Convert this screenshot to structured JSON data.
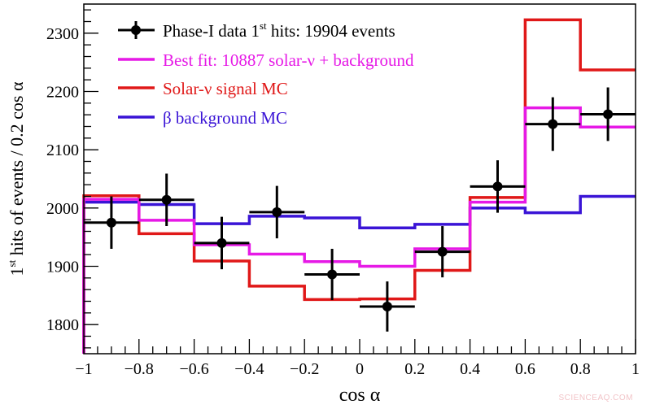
{
  "chart_data": {
    "type": "step-histogram",
    "xlabel": "cos α",
    "ylabel_parts": [
      "1",
      "st",
      " hits of events / 0.2 cos α"
    ],
    "xlim": [
      -1,
      1
    ],
    "ylim": [
      1750,
      2350
    ],
    "xticks": [
      "−1",
      "−0.8",
      "−0.6",
      "−0.4",
      "−0.2",
      "0",
      "0.2",
      "0.4",
      "0.6",
      "0.8",
      "1"
    ],
    "xtick_values": [
      -1,
      -0.8,
      -0.6,
      -0.4,
      -0.2,
      0,
      0.2,
      0.4,
      0.6,
      0.8,
      1
    ],
    "yticks": [
      "1800",
      "1900",
      "2000",
      "2100",
      "2200",
      "2300"
    ],
    "ytick_values": [
      1800,
      1900,
      2000,
      2100,
      2200,
      2300
    ],
    "grid": false,
    "legend_placement": "top-left",
    "bin_edges": [
      -1,
      -0.8,
      -0.6,
      -0.4,
      -0.2,
      0,
      0.2,
      0.4,
      0.6,
      0.8,
      1
    ],
    "data": {
      "legend_parts": [
        "Phase-I data 1",
        "st",
        " hits: 19904 events"
      ],
      "color": "#000000",
      "x": [
        -0.9,
        -0.7,
        -0.5,
        -0.3,
        -0.1,
        0.1,
        0.3,
        0.5,
        0.7,
        0.9
      ],
      "y": [
        1975,
        2014,
        1940,
        1993,
        1886,
        1831,
        1925,
        2037,
        2144,
        2161
      ],
      "yerr": [
        45,
        45,
        45,
        45,
        44,
        43,
        44,
        45,
        46,
        46
      ]
    },
    "series": [
      {
        "name": "Best fit: 10887 solar-ν + background",
        "color": "#e619e6",
        "values": [
          2015,
          1979,
          1937,
          1921,
          1908,
          1900,
          1930,
          2010,
          2172,
          2139
        ]
      },
      {
        "name": "Solar-ν signal MC",
        "color": "#e01818",
        "values": [
          2021,
          1956,
          1909,
          1866,
          1843,
          1844,
          1893,
          2018,
          2323,
          2237
        ]
      },
      {
        "name": "β background MC",
        "color": "#3a14d6",
        "values": [
          2010,
          2006,
          1973,
          1986,
          1983,
          1966,
          1972,
          2000,
          1992,
          2020
        ]
      }
    ]
  },
  "watermark": "SCIENCEAQ.COM"
}
